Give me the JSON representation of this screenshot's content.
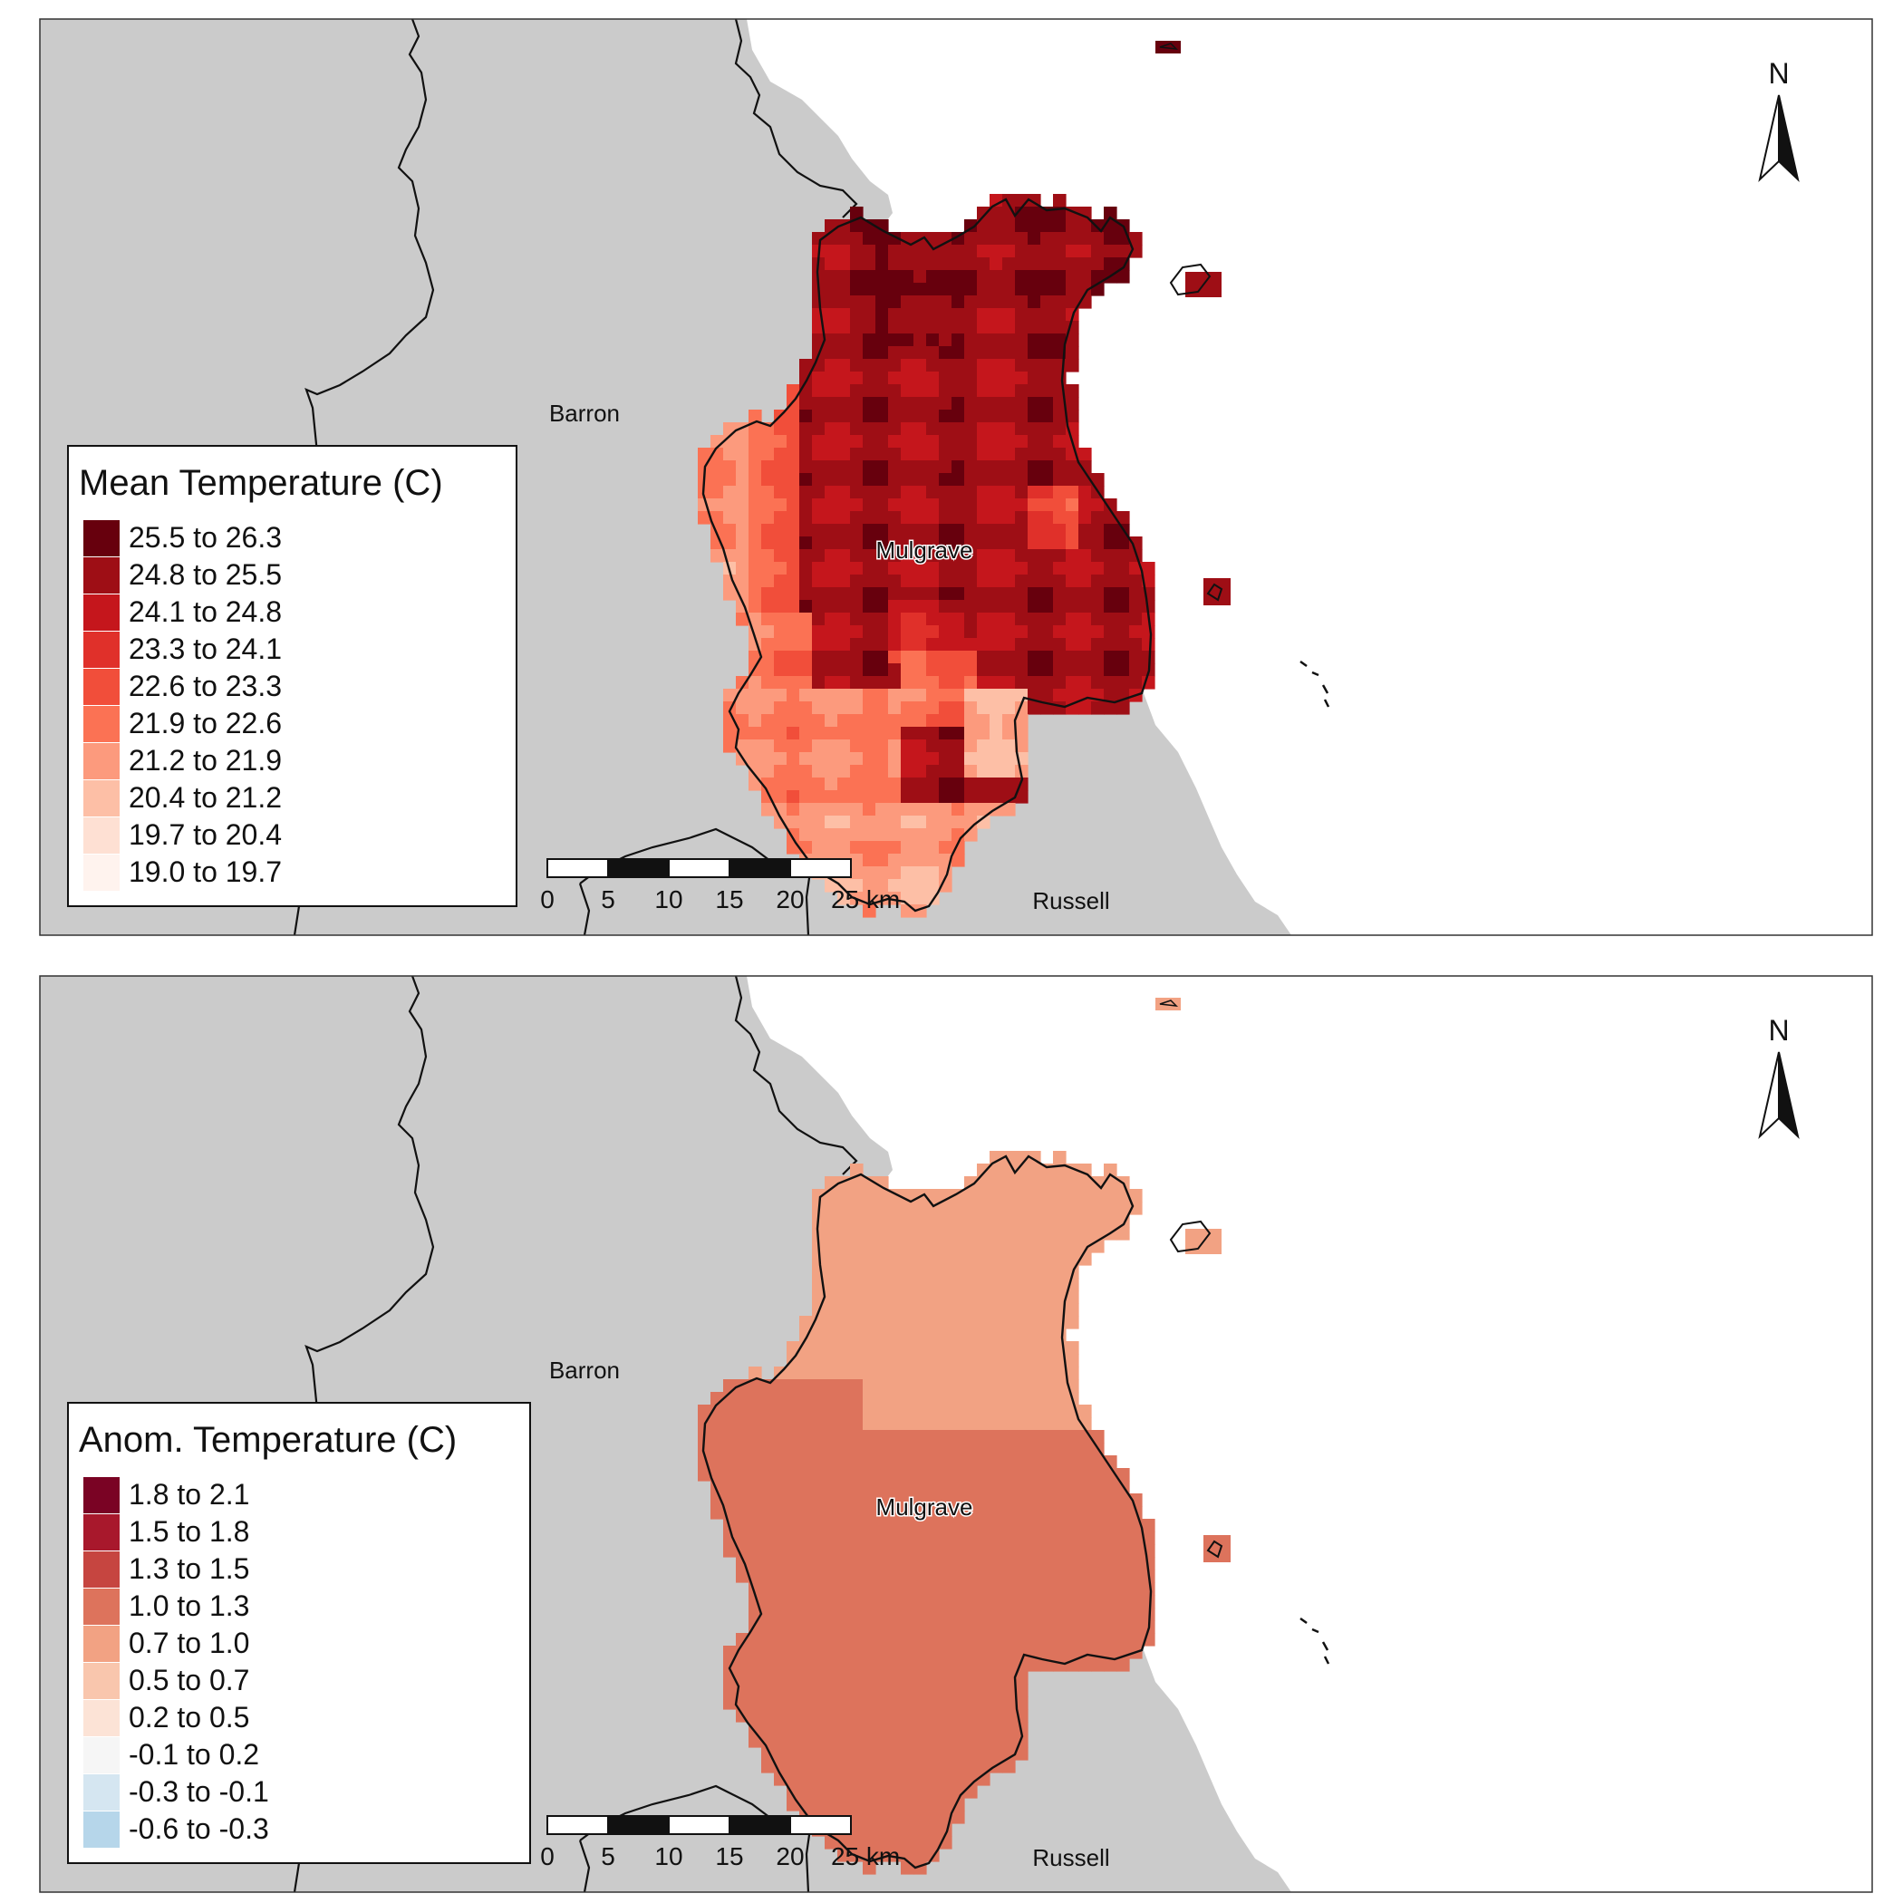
{
  "panels": [
    {
      "id": "mean",
      "legend": {
        "title": "Mean Temperature (C)",
        "classes": [
          {
            "label": "25.5 to 26.3",
            "color": "#67000d"
          },
          {
            "label": "24.8 to 25.5",
            "color": "#9e0e15"
          },
          {
            "label": "24.1 to 24.8",
            "color": "#c5161c"
          },
          {
            "label": "23.3 to 24.1",
            "color": "#e0302a"
          },
          {
            "label": "22.6 to 23.3",
            "color": "#f14e3a"
          },
          {
            "label": "21.9 to 22.6",
            "color": "#fb7254"
          },
          {
            "label": "21.2 to 21.9",
            "color": "#fc9a7d"
          },
          {
            "label": "20.4 to 21.2",
            "color": "#fdbfa6"
          },
          {
            "label": "19.7 to 20.4",
            "color": "#fee0d3"
          },
          {
            "label": "19.0 to 19.7",
            "color": "#fff3ee"
          }
        ]
      },
      "places": {
        "barron": "Barron",
        "mulgrave": "Mulgrave",
        "russell": "Russell"
      },
      "north": "N",
      "scalebar": {
        "ticks": [
          "0",
          "5",
          "10",
          "15",
          "20",
          "25 km"
        ]
      }
    },
    {
      "id": "anom",
      "legend": {
        "title": "Anom. Temperature (C)",
        "classes": [
          {
            "label": "1.8 to 2.1",
            "color": "#7a0324"
          },
          {
            "label": "1.5 to 1.8",
            "color": "#a8182c"
          },
          {
            "label": "1.3 to 1.5",
            "color": "#c64540"
          },
          {
            "label": "1.0 to 1.3",
            "color": "#dd735c"
          },
          {
            "label": "0.7 to 1.0",
            "color": "#f2a283"
          },
          {
            "label": "0.5 to 0.7",
            "color": "#f9c6ad"
          },
          {
            "label": "0.2 to 0.5",
            "color": "#fce3d6"
          },
          {
            "label": "-0.1 to 0.2",
            "color": "#f6f6f6"
          },
          {
            "label": "-0.3 to -0.1",
            "color": "#d5e6f1"
          },
          {
            "label": "-0.6 to -0.3",
            "color": "#b6d6ea"
          }
        ]
      },
      "places": {
        "barron": "Barron",
        "mulgrave": "Mulgrave",
        "russell": "Russell"
      },
      "north": "N",
      "scalebar": {
        "ticks": [
          "0",
          "5",
          "10",
          "15",
          "20",
          "25 km"
        ]
      }
    }
  ],
  "colors": {
    "land": "#cbcbcb",
    "sea": "#ffffff",
    "border": "#111111"
  }
}
